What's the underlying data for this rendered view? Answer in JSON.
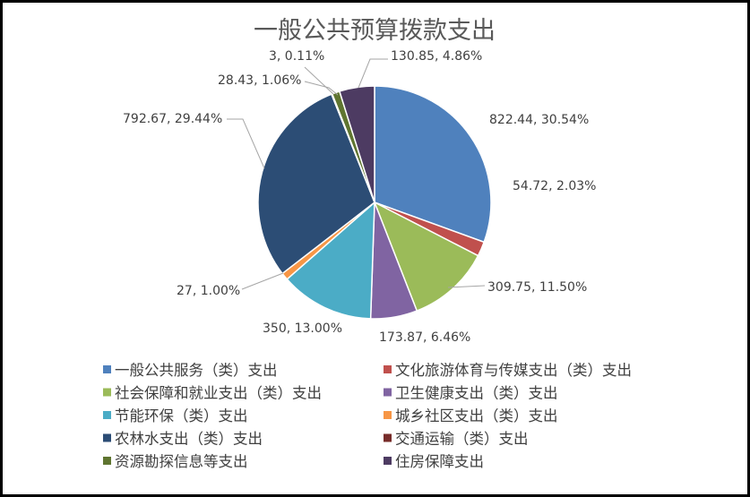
{
  "chart_data": {
    "type": "pie",
    "title": "一般公共预算拨款支出",
    "slices": [
      {
        "name": "一般公共服务（类）支出",
        "value": 822.44,
        "percent": "30.54%",
        "label": "822.44, 30.54%",
        "color": "#4f81bd"
      },
      {
        "name": "文化旅游体育与传媒支出（类）支出",
        "value": 54.72,
        "percent": "2.03%",
        "label": "54.72, 2.03%",
        "color": "#c0504d"
      },
      {
        "name": "社会保障和就业支出（类）支出",
        "value": 309.75,
        "percent": "11.50%",
        "label": "309.75, 11.50%",
        "color": "#9bbb59"
      },
      {
        "name": "卫生健康支出（类）支出",
        "value": 173.87,
        "percent": "6.46%",
        "label": "173.87, 6.46%",
        "color": "#8064a2"
      },
      {
        "name": "节能环保（类）支出",
        "value": 350,
        "percent": "13.00%",
        "label": "350, 13.00%",
        "color": "#4bacc6"
      },
      {
        "name": "城乡社区支出（类）支出",
        "value": 27,
        "percent": "1.00%",
        "label": "27, 1.00%",
        "color": "#f79646"
      },
      {
        "name": "农林水支出（类）支出",
        "value": 792.67,
        "percent": "29.44%",
        "label": "792.67, 29.44%",
        "color": "#2c4d75"
      },
      {
        "name": "交通运输（类）支出",
        "value": 3,
        "percent": "0.11%",
        "label": "3, 0.11%",
        "color": "#772c2a"
      },
      {
        "name": "资源勘探信息等支出",
        "value": 28.43,
        "percent": "1.06%",
        "label": "28.43, 1.06%",
        "color": "#5f7530"
      },
      {
        "name": "住房保障支出",
        "value": 130.85,
        "percent": "4.86%",
        "label": "130.85, 4.86%",
        "color": "#4d3b62"
      }
    ],
    "legend_position": "bottom"
  }
}
